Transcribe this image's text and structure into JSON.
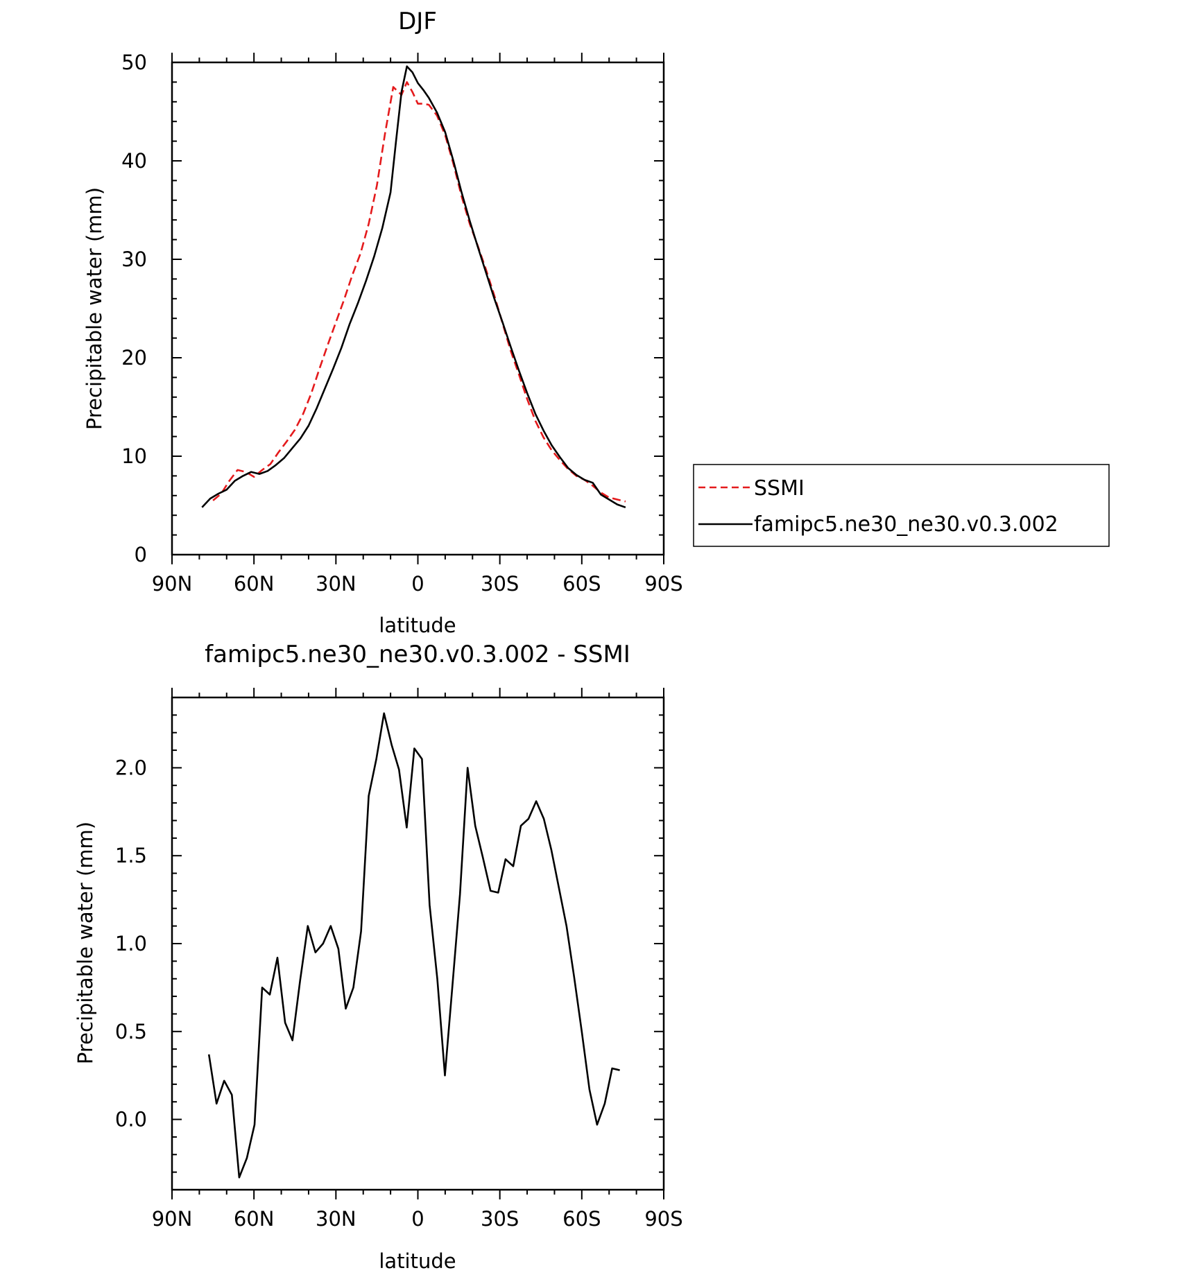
{
  "chart_data": [
    {
      "type": "line",
      "title": "DJF",
      "xlabel": "latitude",
      "ylabel": "Precipitable water (mm)",
      "xlim": [
        90,
        -90
      ],
      "ylim": [
        0,
        50
      ],
      "x_tick_values": [
        90,
        60,
        30,
        0,
        -30,
        -60,
        -90
      ],
      "x_tick_labels": [
        "90N",
        "60N",
        "30N",
        "0",
        "30S",
        "60S",
        "90S"
      ],
      "y_tick_values": [
        0,
        10,
        20,
        30,
        40,
        50
      ],
      "y_tick_labels": [
        "0",
        "10",
        "20",
        "30",
        "40",
        "50"
      ],
      "grid": false,
      "legend_placement": "right",
      "series": [
        {
          "name": "SSMI",
          "color": "#e41a1c",
          "dash": "dashed",
          "x": [
            75,
            72,
            69,
            66,
            63,
            60,
            57,
            54,
            51,
            48,
            45,
            42,
            39,
            36,
            33,
            30,
            27,
            24,
            21,
            18,
            15,
            12,
            9,
            6,
            4,
            2,
            0,
            -2,
            -4,
            -7,
            -10,
            -13,
            -16,
            -19,
            -22,
            -25,
            -28,
            -31,
            -34,
            -37,
            -40,
            -43,
            -46,
            -49,
            -52,
            -55,
            -58,
            -61,
            -64,
            -67,
            -70,
            -73,
            -76
          ],
          "y": [
            5.5,
            6.2,
            7.5,
            8.6,
            8.4,
            7.9,
            8.6,
            9.2,
            10.4,
            11.5,
            12.7,
            14.3,
            16.4,
            18.9,
            21.3,
            23.6,
            25.9,
            28.4,
            30.6,
            33.6,
            37.5,
            42.8,
            47.5,
            46.7,
            48.0,
            47.0,
            45.8,
            45.8,
            45.7,
            44.6,
            42.6,
            39.7,
            36.4,
            33.6,
            31.3,
            28.9,
            26.3,
            23.5,
            20.7,
            18.3,
            15.8,
            13.6,
            11.9,
            10.6,
            9.6,
            8.7,
            8.0,
            7.6,
            7.0,
            6.3,
            5.8,
            5.6,
            5.4
          ]
        },
        {
          "name": "famipc5.ne30_ne30.v0.3.002",
          "color": "#000000",
          "dash": "solid",
          "x": [
            79,
            76,
            73,
            70,
            67,
            64,
            61,
            58,
            55,
            52,
            49,
            46,
            43,
            40,
            37,
            34,
            31,
            28,
            25,
            22,
            19,
            16,
            13,
            10,
            8,
            6,
            4,
            2,
            0,
            -2,
            -4,
            -7,
            -10,
            -13,
            -16,
            -19,
            -22,
            -25,
            -28,
            -31,
            -34,
            -37,
            -40,
            -43,
            -46,
            -49,
            -52,
            -55,
            -58,
            -61,
            -64,
            -67,
            -70,
            -73,
            -76
          ],
          "y": [
            4.8,
            5.7,
            6.2,
            6.6,
            7.5,
            8.0,
            8.4,
            8.2,
            8.5,
            9.1,
            9.8,
            10.8,
            11.8,
            13.1,
            14.9,
            16.9,
            18.9,
            21.0,
            23.4,
            25.5,
            27.8,
            30.3,
            33.2,
            36.8,
            42.0,
            47.0,
            49.6,
            49.0,
            47.9,
            47.2,
            46.4,
            44.9,
            42.9,
            40.0,
            36.8,
            33.9,
            31.2,
            28.6,
            26.0,
            23.6,
            21.1,
            18.7,
            16.4,
            14.3,
            12.6,
            11.1,
            9.9,
            8.8,
            8.1,
            7.6,
            7.3,
            6.1,
            5.6,
            5.1,
            4.8
          ]
        }
      ]
    },
    {
      "type": "line",
      "title": "famipc5.ne30_ne30.v0.3.002 - SSMI",
      "xlabel": "latitude",
      "ylabel": "Precipitable water (mm)",
      "xlim": [
        90,
        -90
      ],
      "ylim": [
        -0.4,
        2.4
      ],
      "x_tick_values": [
        90,
        60,
        30,
        0,
        -30,
        -60,
        -90
      ],
      "x_tick_labels": [
        "90N",
        "60N",
        "30N",
        "0",
        "30S",
        "60S",
        "90S"
      ],
      "y_tick_values": [
        0.0,
        0.5,
        1.0,
        1.5,
        2.0
      ],
      "y_tick_labels": [
        "0.0",
        "0.5",
        "1.0",
        "1.5",
        "2.0"
      ],
      "grid": false,
      "series": [
        {
          "color": "#000000",
          "dash": "solid",
          "x": [
            76.5,
            73.7,
            70.9,
            68.1,
            65.4,
            62.6,
            59.8,
            57.0,
            54.2,
            51.4,
            48.6,
            45.9,
            43.1,
            40.3,
            37.5,
            34.7,
            31.9,
            29.1,
            26.4,
            23.6,
            20.8,
            18.0,
            15.2,
            12.4,
            9.6,
            6.9,
            4.1,
            1.3,
            -1.5,
            -4.3,
            -7.1,
            -9.9,
            -12.6,
            -15.4,
            -18.2,
            -21.0,
            -23.8,
            -26.6,
            -29.4,
            -32.1,
            -34.9,
            -37.7,
            -40.5,
            -43.3,
            -46.1,
            -48.9,
            -51.6,
            -54.4,
            -57.2,
            -60.0,
            -62.8,
            -65.6,
            -68.4,
            -71.1,
            -73.9,
            -76.7
          ],
          "y": [
            0.37,
            0.09,
            0.22,
            0.14,
            -0.33,
            -0.22,
            -0.03,
            0.75,
            0.71,
            0.92,
            0.55,
            0.45,
            0.79,
            1.1,
            0.95,
            1.0,
            1.1,
            0.97,
            0.63,
            0.75,
            1.07,
            1.84,
            2.05,
            2.31,
            2.13,
            1.99,
            1.66,
            2.11,
            2.05,
            1.22,
            0.8,
            0.25,
            0.75,
            1.28,
            2.0,
            1.67,
            1.49,
            1.3,
            1.29,
            1.48,
            1.44,
            1.67,
            1.71,
            1.81,
            1.71,
            1.53,
            1.32,
            1.1,
            0.81,
            0.5,
            0.17,
            -0.03,
            0.09,
            0.29,
            0.28,
            null
          ]
        }
      ]
    }
  ]
}
